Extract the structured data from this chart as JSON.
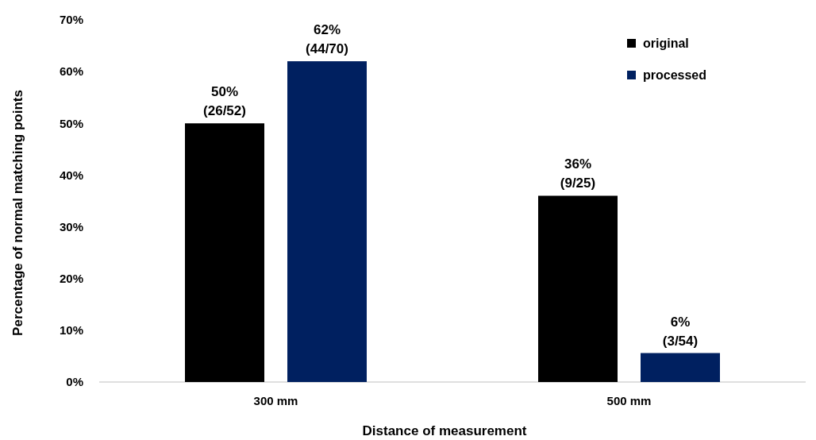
{
  "chart_data": {
    "type": "bar",
    "xlabel": "Distance of measurement",
    "ylabel": "Percentage of normal matching points",
    "categories": [
      "300 mm",
      "500 mm"
    ],
    "series": [
      {
        "name": "original",
        "color": "#000000",
        "values": [
          50,
          36
        ],
        "value_labels": [
          "50%\n(26/52)",
          "36%\n(9/25)"
        ]
      },
      {
        "name": "processed",
        "color": "#002060",
        "values": [
          62,
          5.6
        ],
        "value_labels": [
          "62%\n(44/70)",
          "6%\n(3/54)"
        ]
      }
    ],
    "ylim": [
      0,
      70
    ],
    "yticks": [
      {
        "value": 0,
        "label": "0%"
      },
      {
        "value": 10,
        "label": "10%"
      },
      {
        "value": 20,
        "label": "20%"
      },
      {
        "value": 30,
        "label": "30%"
      },
      {
        "value": 40,
        "label": "40%"
      },
      {
        "value": 50,
        "label": "50%"
      },
      {
        "value": 60,
        "label": "60%"
      },
      {
        "value": 70,
        "label": "70%"
      }
    ],
    "grid": false,
    "legend": "top right"
  }
}
